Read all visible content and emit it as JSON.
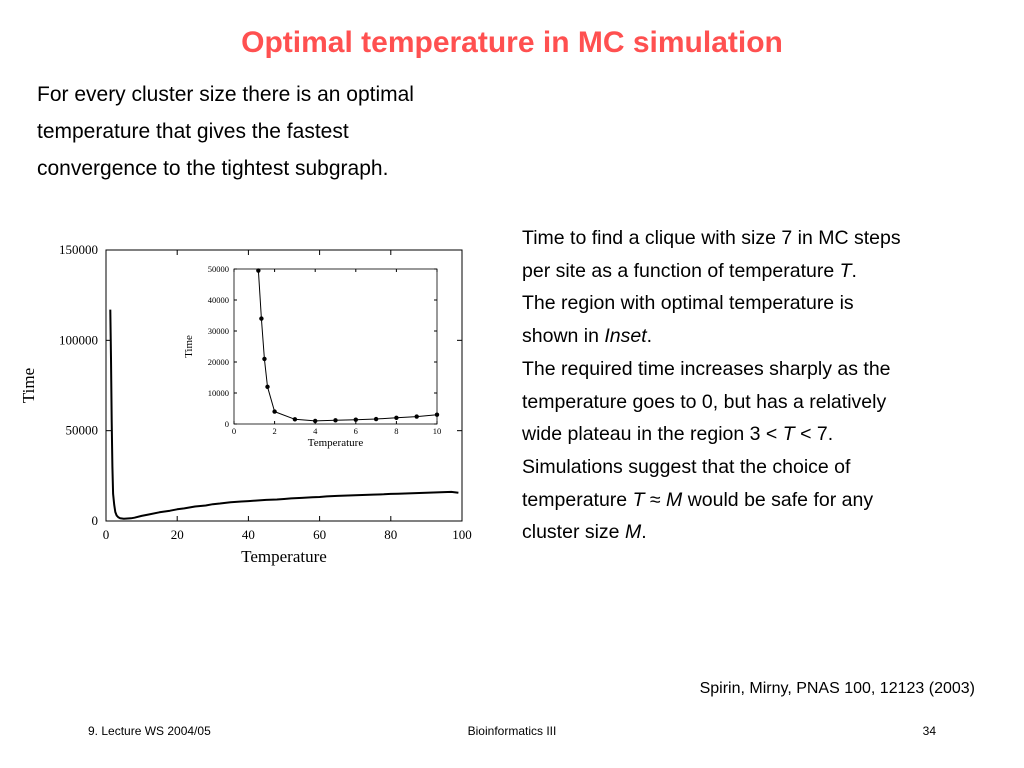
{
  "slide": {
    "title": "Optimal temperature in MC simulation",
    "intro": "For every cluster size there is an optimal temperature that gives the fastest convergence to the tightest subgraph.",
    "description_lines": [
      [
        {
          "t": "Time to find a clique with size 7 in MC steps"
        }
      ],
      [
        {
          "t": "per site as a function of temperature "
        },
        {
          "t": "T",
          "i": true
        },
        {
          "t": "."
        }
      ],
      [
        {
          "t": "The region with optimal temperature is"
        }
      ],
      [
        {
          "t": "shown in "
        },
        {
          "t": "Inset",
          "i": true
        },
        {
          "t": "."
        }
      ],
      [
        {
          "t": "The required time increases sharply as the"
        }
      ],
      [
        {
          "t": "temperature goes to 0, but has a relatively"
        }
      ],
      [
        {
          "t": "wide plateau in the region 3 < "
        },
        {
          "t": "T",
          "i": true
        },
        {
          "t": " < 7."
        }
      ],
      [
        {
          "t": "Simulations suggest that the choice of"
        }
      ],
      [
        {
          "t": "temperature "
        },
        {
          "t": "T",
          "i": true
        },
        {
          "t": " ≈ "
        },
        {
          "t": "M",
          "i": true
        },
        {
          "t": " would be safe for any"
        }
      ],
      [
        {
          "t": "cluster size "
        },
        {
          "t": "M",
          "i": true
        },
        {
          "t": "."
        }
      ]
    ],
    "reference": "Spirin, Mirny, PNAS 100, 12123 (2003)",
    "footer": {
      "left": "9. Lecture WS 2004/05",
      "center": "Bioinformatics III",
      "right": "34"
    }
  },
  "chart_data": [
    {
      "type": "line",
      "xlabel": "Temperature",
      "ylabel": "Time",
      "xlim": [
        0,
        100
      ],
      "ylim": [
        0,
        150000
      ],
      "xticks": [
        0,
        20,
        40,
        60,
        80,
        100
      ],
      "yticks": [
        0,
        50000,
        100000,
        150000
      ],
      "grid": false,
      "series": [
        {
          "x": [
            1.2,
            1.4,
            1.6,
            1.8,
            2.0,
            2.3,
            2.6,
            3,
            3.5,
            4,
            5,
            6,
            7,
            8,
            10,
            12,
            15,
            18,
            20,
            22,
            25,
            28,
            30,
            32,
            35,
            38,
            40,
            42,
            45,
            48,
            50,
            52,
            55,
            58,
            60,
            62,
            65,
            68,
            70,
            72,
            75,
            78,
            80,
            82,
            85,
            88,
            90,
            92,
            95,
            97,
            99
          ],
          "y": [
            117000,
            90000,
            55000,
            30000,
            15000,
            9000,
            5000,
            3000,
            2000,
            1500,
            1300,
            1400,
            1500,
            1800,
            2800,
            3600,
            4800,
            5700,
            6500,
            7000,
            8000,
            8600,
            9300,
            9700,
            10400,
            10800,
            11000,
            11300,
            11700,
            11900,
            12200,
            12500,
            12800,
            13100,
            13300,
            13600,
            13900,
            14100,
            14200,
            14400,
            14600,
            14800,
            15000,
            15100,
            15300,
            15500,
            15600,
            15800,
            16000,
            16100,
            15600
          ]
        }
      ]
    },
    {
      "type": "line",
      "inset": true,
      "xlabel": "Temperature",
      "ylabel": "Time",
      "xlim": [
        0,
        10
      ],
      "ylim": [
        0,
        50000
      ],
      "xticks": [
        0,
        2,
        4,
        6,
        8,
        10
      ],
      "yticks": [
        0,
        10000,
        20000,
        30000,
        40000,
        50000
      ],
      "grid": false,
      "series": [
        {
          "x": [
            1.2,
            1.35,
            1.5,
            1.65,
            2.0,
            3.0,
            4.0,
            5.0,
            6.0,
            7.0,
            8.0,
            9.0,
            10.0
          ],
          "y": [
            49500,
            34000,
            21000,
            12000,
            4000,
            1500,
            1000,
            1200,
            1400,
            1600,
            2000,
            2400,
            3000
          ],
          "markers": true
        }
      ]
    }
  ]
}
